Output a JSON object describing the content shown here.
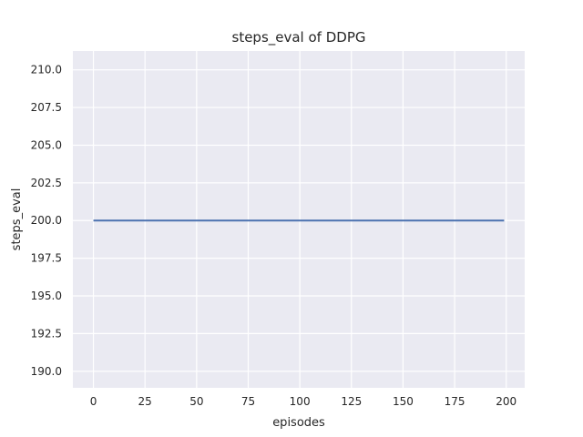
{
  "chart_data": {
    "type": "line",
    "title": "steps_eval of DDPG",
    "xlabel": "episodes",
    "ylabel": "steps_eval",
    "series": [
      {
        "name": "steps_eval",
        "x": [
          0,
          199
        ],
        "y": [
          200.0,
          200.0
        ],
        "color": "#4c72b0",
        "linewidth": 1.9
      }
    ],
    "xlim": [
      -9.95,
      208.95
    ],
    "ylim": [
      188.9,
      211.25
    ],
    "xticks": {
      "values": [
        0,
        25,
        50,
        75,
        100,
        125,
        150,
        175,
        200
      ],
      "labels": [
        "0",
        "25",
        "50",
        "75",
        "100",
        "125",
        "150",
        "175",
        "200"
      ]
    },
    "yticks": {
      "values": [
        190.0,
        192.5,
        195.0,
        197.5,
        200.0,
        202.5,
        205.0,
        207.5,
        210.0
      ],
      "labels": [
        "190.0",
        "192.5",
        "195.0",
        "197.5",
        "200.0",
        "202.5",
        "205.0",
        "207.5",
        "210.0"
      ]
    },
    "grid": true,
    "legend": null,
    "style": {
      "figure_bg": "#ffffff",
      "axes_bg": "#eaeaf2",
      "grid_color": "#ffffff",
      "text_color": "#262626"
    }
  }
}
